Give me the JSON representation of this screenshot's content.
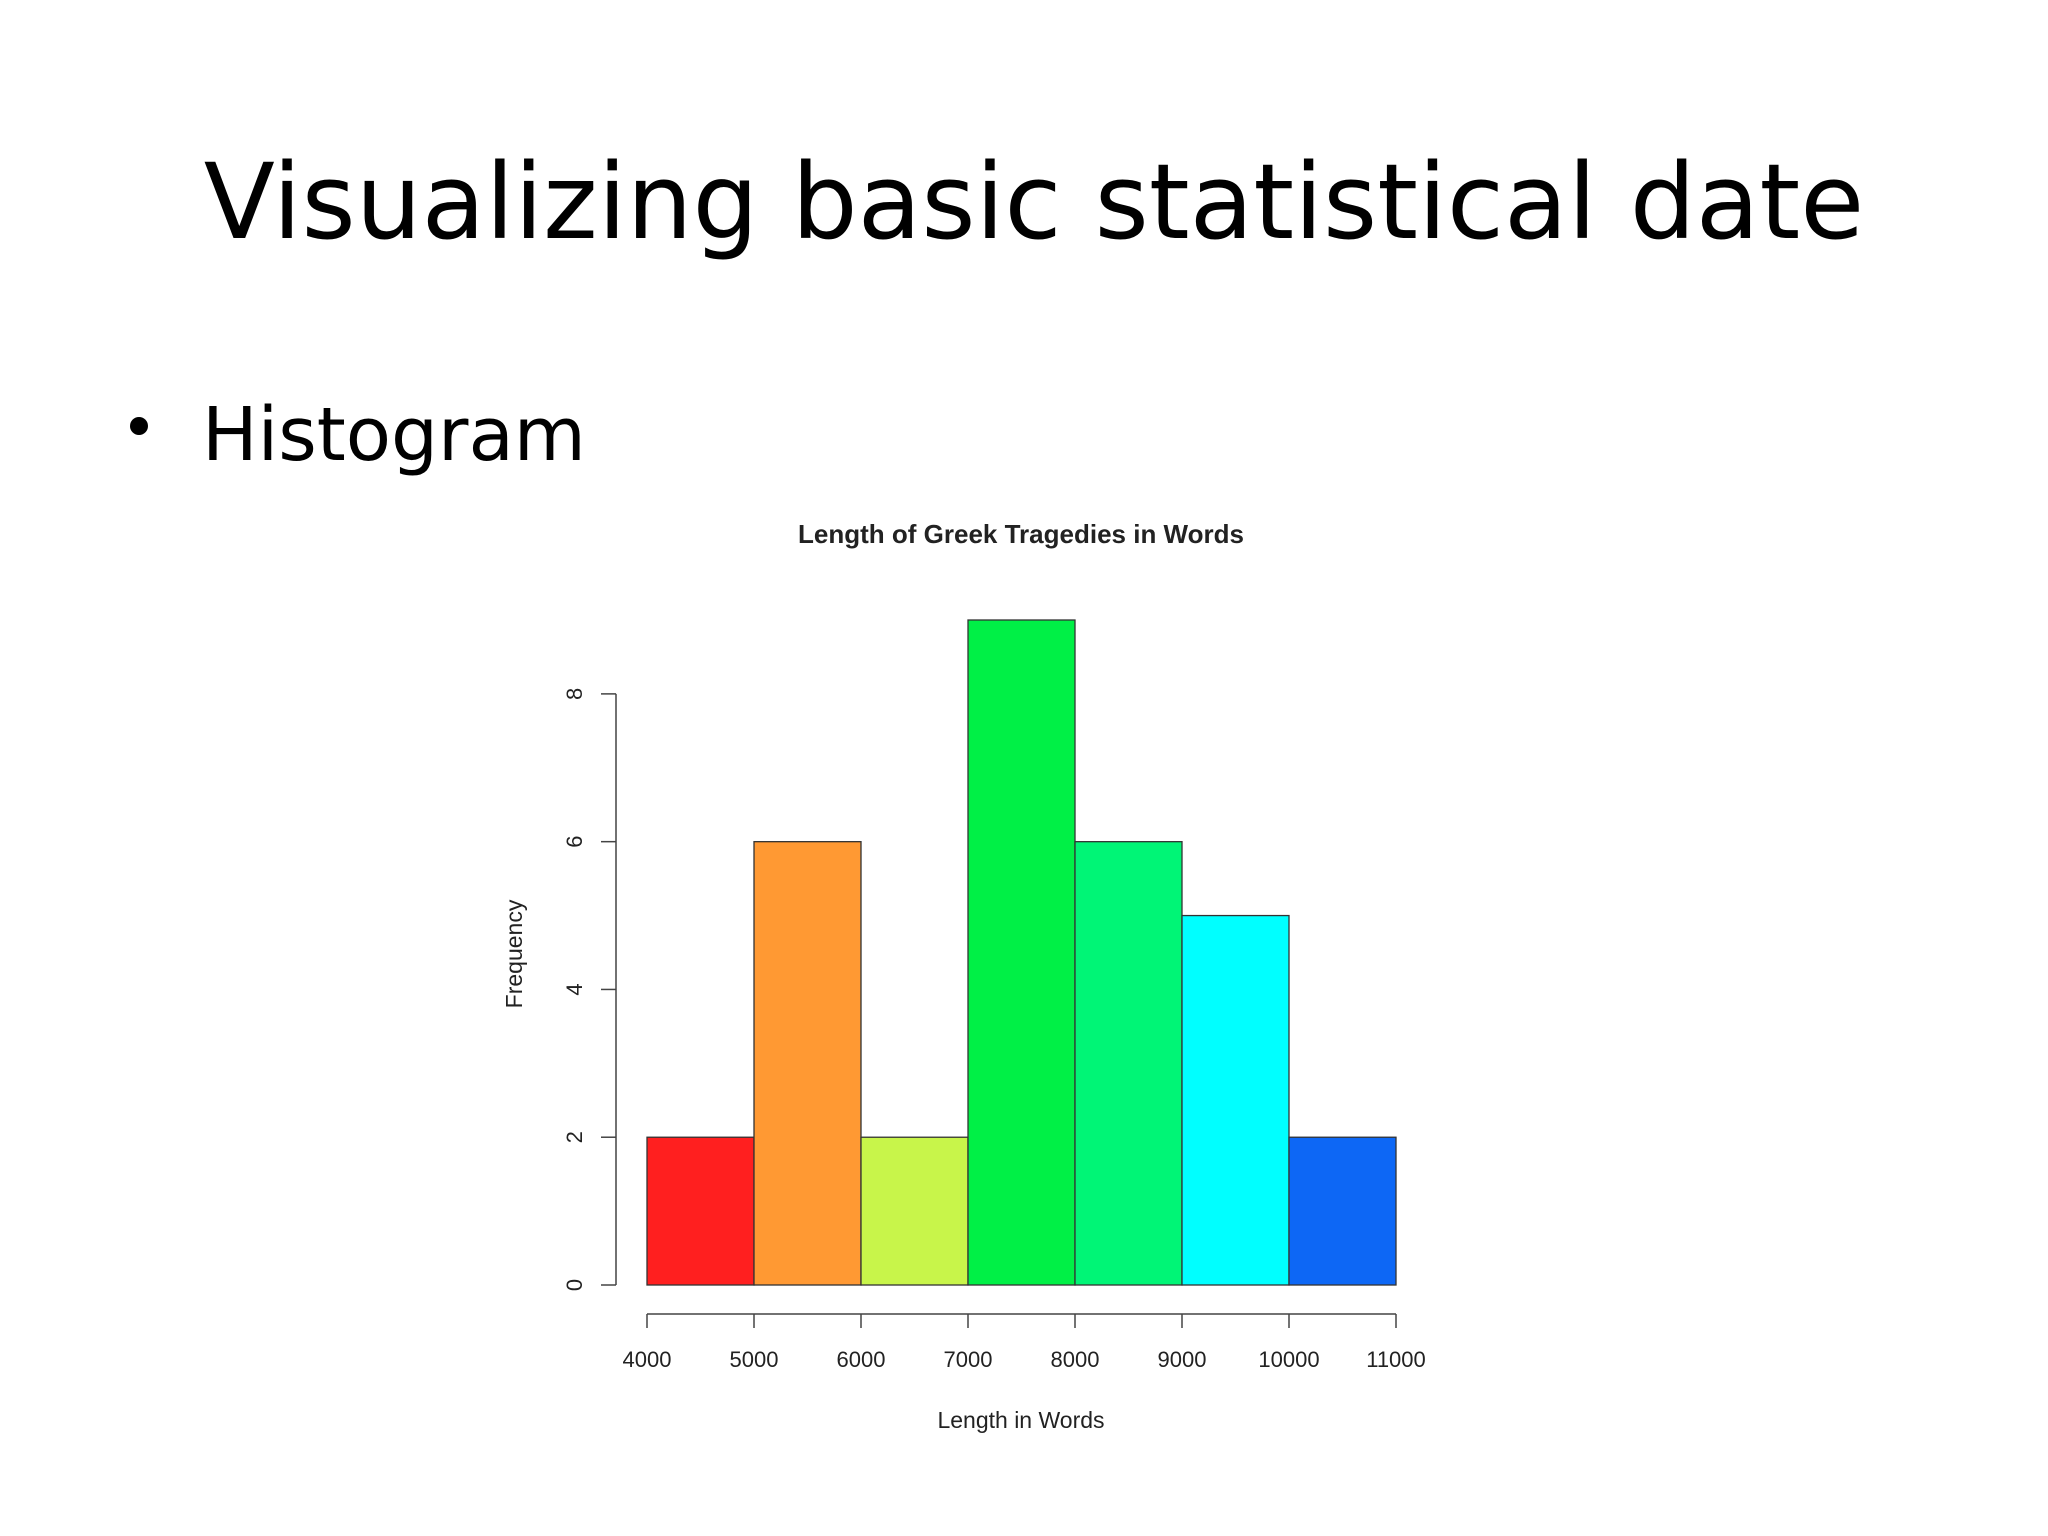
{
  "slide": {
    "title": "Visualizing basic statistical date",
    "bullets": [
      "Histogram"
    ]
  },
  "chart_data": {
    "type": "histogram",
    "title": "Length of Greek Tragedies in Words",
    "x_label": "Length in Words",
    "y_label": "Frequency",
    "bins": [
      4000,
      5000,
      6000,
      7000,
      8000,
      9000,
      10000,
      11000
    ],
    "values": [
      2,
      6,
      2,
      9,
      6,
      5,
      2
    ],
    "colors": [
      "#ff1f1f",
      "#ff9933",
      "#c8f54a",
      "#00f046",
      "#00f576",
      "#00ffff",
      "#0d67f5"
    ],
    "xlim": [
      4000,
      11000
    ],
    "xticks": [
      4000,
      5000,
      6000,
      7000,
      8000,
      9000,
      10000,
      11000
    ],
    "ylim": [
      0,
      9
    ],
    "yticks": [
      0,
      2,
      4,
      6,
      8
    ]
  }
}
